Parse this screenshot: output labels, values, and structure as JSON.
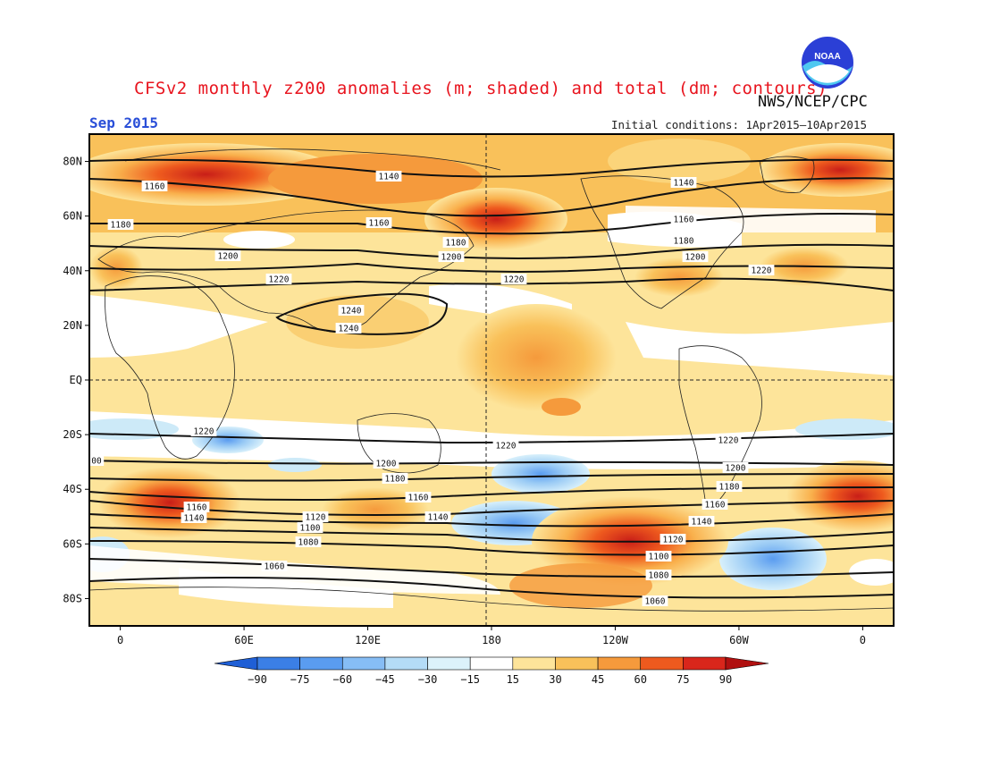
{
  "header": {
    "title": "CFSv2 monthly z200 anomalies (m; shaded) and total (dm; contours)",
    "agency": "NWS/NCEP/CPC",
    "month": "Sep 2015",
    "initial_conditions": "Initial conditions: 1Apr2015–10Apr2015",
    "logo_text": "NOAA"
  },
  "map": {
    "lat_labels": [
      "80N",
      "60N",
      "40N",
      "20N",
      "EQ",
      "20S",
      "40S",
      "60S",
      "80S"
    ],
    "lat_values": [
      80,
      60,
      40,
      20,
      0,
      -20,
      -40,
      -60,
      -80
    ],
    "lon_labels": [
      "0",
      "60E",
      "120E",
      "180",
      "120W",
      "60W",
      "0"
    ],
    "lon_values": [
      0,
      60,
      120,
      180,
      240,
      300,
      360
    ],
    "lon_range": [
      -15,
      375
    ],
    "lat_range": [
      -90,
      90
    ],
    "reference_lines": [
      "EQ",
      "180"
    ],
    "contour_labels": [
      "1140",
      "1160",
      "1180",
      "1200",
      "1220",
      "1240",
      "1220",
      "1200",
      "1180",
      "1160",
      "1140",
      "1120",
      "1100",
      "1080",
      "1060",
      "00"
    ]
  },
  "colorbar": {
    "labels": [
      "-90",
      "-75",
      "-60",
      "-45",
      "-30",
      "-15",
      "15",
      "30",
      "45",
      "60",
      "75",
      "90"
    ],
    "colors": [
      "#1f5fd6",
      "#3b7fe6",
      "#5a9cf0",
      "#86bdf5",
      "#b4dcf7",
      "#dcf2fb",
      "#ffffff",
      "#fde49a",
      "#f9c15a",
      "#f59a3c",
      "#ee5a1e",
      "#d9261b",
      "#b01010"
    ]
  }
}
